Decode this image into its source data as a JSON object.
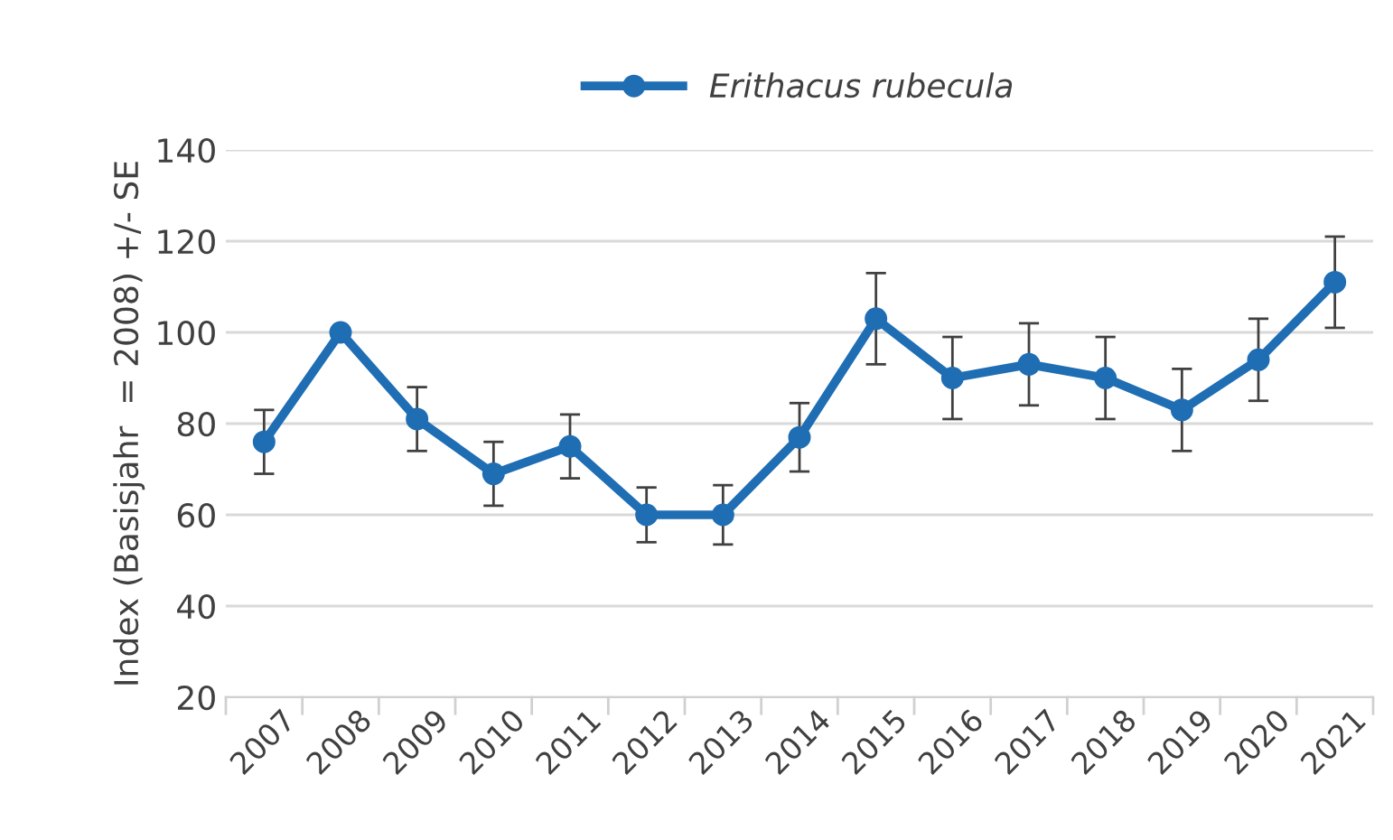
{
  "chart_data": {
    "type": "line",
    "ylabel": "Index (Basisjahr  = 2008) +/- SE",
    "categories": [
      "2007",
      "2008",
      "2009",
      "2010",
      "2011",
      "2012",
      "2013",
      "2014",
      "2015",
      "2016",
      "2017",
      "2018",
      "2019",
      "2020",
      "2021"
    ],
    "series": [
      {
        "name": "Erithacus rubecula",
        "color": "#1f6eb4",
        "values": [
          76,
          100,
          81,
          69,
          75,
          60,
          60,
          77,
          103,
          90,
          93,
          90,
          83,
          94,
          111
        ],
        "errors": [
          7,
          null,
          7,
          7,
          7,
          6,
          6.5,
          7.5,
          10,
          9,
          9,
          9,
          9,
          9,
          10
        ]
      }
    ],
    "ylim": [
      20,
      140
    ],
    "yticks": [
      20,
      40,
      60,
      80,
      100,
      120,
      140
    ],
    "grid": "y",
    "legend": "top",
    "marker": "circle",
    "line_style": "solid"
  }
}
